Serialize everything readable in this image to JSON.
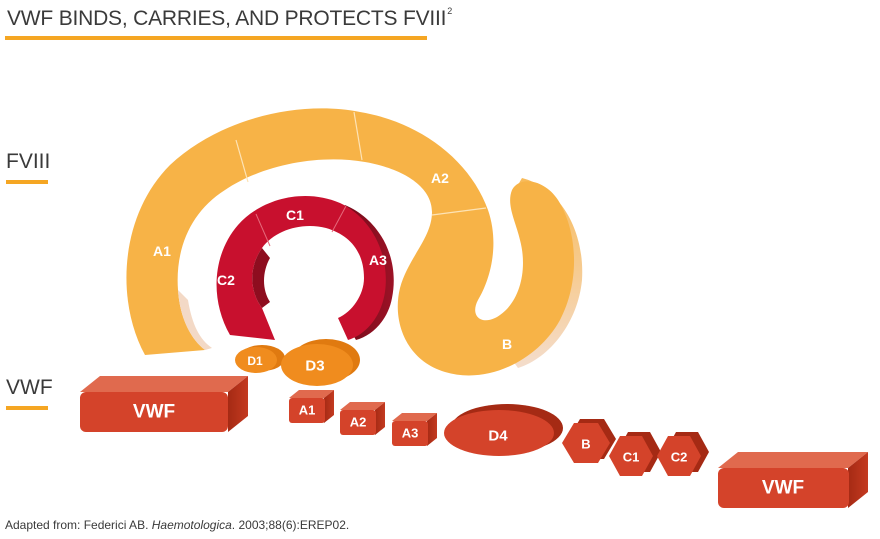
{
  "title": {
    "text": "VWF BINDS, CARRIES, AND PROTECTS FVIII",
    "superscript": "2"
  },
  "side_labels": {
    "fviii": "FVIII",
    "vwf": "VWF"
  },
  "fviii_domains": {
    "a1": "A1",
    "a2": "A2",
    "b": "B",
    "c1": "C1",
    "c2": "C2",
    "a3": "A3"
  },
  "vwf_domains": {
    "vwf_left": "VWF",
    "d1": "D1",
    "d3": "D3",
    "a1": "A1",
    "a2": "A2",
    "a3": "A3",
    "d4": "D4",
    "b": "B",
    "c1": "C1",
    "c2": "C2",
    "vwf_right": "VWF"
  },
  "citation": {
    "prefix": "Adapted from: Federici AB. ",
    "journal": "Haemotologica",
    "suffix": ". 2003;88(6):EREP02."
  },
  "colors": {
    "fviii_orange": "#f7b347",
    "fviii_red": "#c8102e",
    "vwf_red": "#d4432a",
    "vwf_orange": "#f08c1e",
    "rule_orange": "#f5a623",
    "text_dark": "#3a3a3a"
  }
}
